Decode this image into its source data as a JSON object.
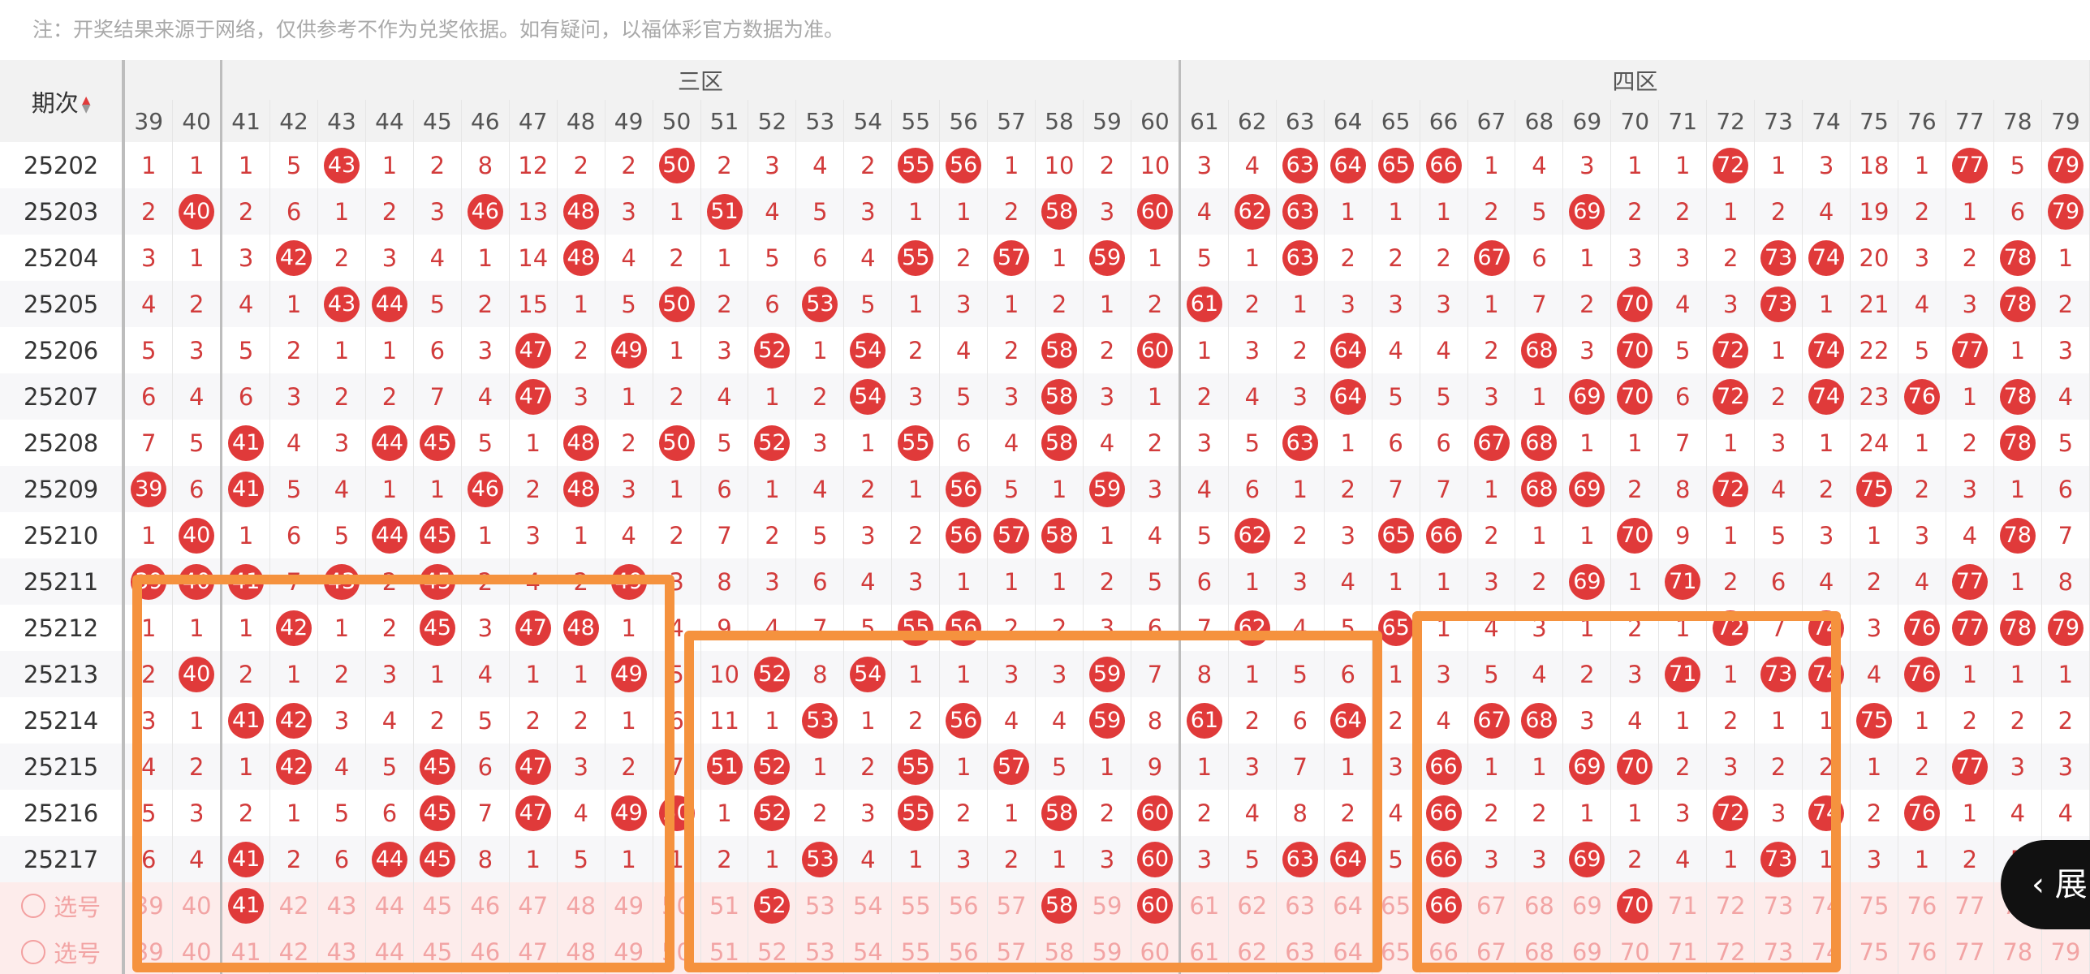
{
  "note": "注：开奖结果来源于网络，仅供参考不作为兑奖依据。如有疑问，以福体彩官方数据为准。",
  "header": {
    "period_label": "期次",
    "zones": [
      {
        "label": "",
        "start": 39,
        "end": 40
      },
      {
        "label": "三区",
        "start": 41,
        "end": 60
      },
      {
        "label": "四区",
        "start": 61,
        "end": 79
      }
    ]
  },
  "numbers": [
    39,
    40,
    41,
    42,
    43,
    44,
    45,
    46,
    47,
    48,
    49,
    50,
    51,
    52,
    53,
    54,
    55,
    56,
    57,
    58,
    59,
    60,
    61,
    62,
    63,
    64,
    65,
    66,
    67,
    68,
    69,
    70,
    71,
    72,
    73,
    74,
    75,
    76,
    77,
    78,
    79
  ],
  "rows": [
    {
      "period": "25202",
      "cells": [
        "1",
        "1",
        "1",
        "5",
        "43",
        "1",
        "2",
        "8",
        "12",
        "2",
        "2",
        "50",
        "2",
        "3",
        "4",
        "2",
        "55",
        "56",
        "1",
        "10",
        "2",
        "10",
        "3",
        "4",
        "63",
        "64",
        "65",
        "66",
        "1",
        "4",
        "3",
        "1",
        "1",
        "72",
        "1",
        "3",
        "18",
        "1",
        "77",
        "5",
        "79"
      ]
    },
    {
      "period": "25203",
      "cells": [
        "2",
        "40",
        "2",
        "6",
        "1",
        "2",
        "3",
        "46",
        "13",
        "48",
        "3",
        "1",
        "51",
        "4",
        "5",
        "3",
        "1",
        "1",
        "2",
        "58",
        "3",
        "60",
        "4",
        "62",
        "63",
        "1",
        "1",
        "1",
        "2",
        "5",
        "69",
        "2",
        "2",
        "1",
        "2",
        "4",
        "19",
        "2",
        "1",
        "6",
        "79"
      ]
    },
    {
      "period": "25204",
      "cells": [
        "3",
        "1",
        "3",
        "42",
        "2",
        "3",
        "4",
        "1",
        "14",
        "48",
        "4",
        "2",
        "1",
        "5",
        "6",
        "4",
        "55",
        "2",
        "57",
        "1",
        "59",
        "1",
        "5",
        "1",
        "63",
        "2",
        "2",
        "2",
        "67",
        "6",
        "1",
        "3",
        "3",
        "2",
        "73",
        "74",
        "20",
        "3",
        "2",
        "78",
        "1"
      ]
    },
    {
      "period": "25205",
      "cells": [
        "4",
        "2",
        "4",
        "1",
        "43",
        "44",
        "5",
        "2",
        "15",
        "1",
        "5",
        "50",
        "2",
        "6",
        "53",
        "5",
        "1",
        "3",
        "1",
        "2",
        "1",
        "2",
        "61",
        "2",
        "1",
        "3",
        "3",
        "3",
        "1",
        "7",
        "2",
        "70",
        "4",
        "3",
        "73",
        "1",
        "21",
        "4",
        "3",
        "78",
        "2"
      ]
    },
    {
      "period": "25206",
      "cells": [
        "5",
        "3",
        "5",
        "2",
        "1",
        "1",
        "6",
        "3",
        "47",
        "2",
        "49",
        "1",
        "3",
        "52",
        "1",
        "54",
        "2",
        "4",
        "2",
        "58",
        "2",
        "60",
        "1",
        "3",
        "2",
        "64",
        "4",
        "4",
        "2",
        "68",
        "3",
        "70",
        "5",
        "72",
        "1",
        "74",
        "22",
        "5",
        "77",
        "1",
        "3"
      ]
    },
    {
      "period": "25207",
      "cells": [
        "6",
        "4",
        "6",
        "3",
        "2",
        "2",
        "7",
        "4",
        "47",
        "3",
        "1",
        "2",
        "4",
        "1",
        "2",
        "54",
        "3",
        "5",
        "3",
        "58",
        "3",
        "1",
        "2",
        "4",
        "3",
        "64",
        "5",
        "5",
        "3",
        "1",
        "69",
        "70",
        "6",
        "72",
        "2",
        "74",
        "23",
        "76",
        "1",
        "78",
        "4"
      ]
    },
    {
      "period": "25208",
      "cells": [
        "7",
        "5",
        "41",
        "4",
        "3",
        "44",
        "45",
        "5",
        "1",
        "48",
        "2",
        "50",
        "5",
        "52",
        "3",
        "1",
        "55",
        "6",
        "4",
        "58",
        "4",
        "2",
        "3",
        "5",
        "63",
        "1",
        "6",
        "6",
        "67",
        "68",
        "1",
        "1",
        "7",
        "1",
        "3",
        "1",
        "24",
        "1",
        "2",
        "78",
        "5"
      ]
    },
    {
      "period": "25209",
      "cells": [
        "39",
        "6",
        "41",
        "5",
        "4",
        "1",
        "1",
        "46",
        "2",
        "48",
        "3",
        "1",
        "6",
        "1",
        "4",
        "2",
        "1",
        "56",
        "5",
        "1",
        "59",
        "3",
        "4",
        "6",
        "1",
        "2",
        "7",
        "7",
        "1",
        "68",
        "69",
        "2",
        "8",
        "72",
        "4",
        "2",
        "75",
        "2",
        "3",
        "1",
        "6"
      ]
    },
    {
      "period": "25210",
      "cells": [
        "1",
        "40",
        "1",
        "6",
        "5",
        "44",
        "45",
        "1",
        "3",
        "1",
        "4",
        "2",
        "7",
        "2",
        "5",
        "3",
        "2",
        "56",
        "57",
        "58",
        "1",
        "4",
        "5",
        "62",
        "2",
        "3",
        "65",
        "66",
        "2",
        "1",
        "1",
        "70",
        "9",
        "1",
        "5",
        "3",
        "1",
        "3",
        "4",
        "78",
        "7"
      ]
    },
    {
      "period": "25211",
      "cells": [
        "39",
        "40",
        "41",
        "7",
        "43",
        "2",
        "45",
        "2",
        "4",
        "2",
        "49",
        "3",
        "8",
        "3",
        "6",
        "4",
        "3",
        "1",
        "1",
        "1",
        "2",
        "5",
        "6",
        "1",
        "3",
        "4",
        "1",
        "1",
        "3",
        "2",
        "69",
        "1",
        "71",
        "2",
        "6",
        "4",
        "2",
        "4",
        "77",
        "1",
        "8"
      ]
    },
    {
      "period": "25212",
      "cells": [
        "1",
        "1",
        "1",
        "42",
        "1",
        "2",
        "45",
        "3",
        "47",
        "48",
        "1",
        "4",
        "9",
        "4",
        "7",
        "5",
        "55",
        "56",
        "2",
        "2",
        "3",
        "6",
        "7",
        "62",
        "4",
        "5",
        "65",
        "1",
        "4",
        "3",
        "1",
        "2",
        "1",
        "72",
        "7",
        "74",
        "3",
        "76",
        "77",
        "78",
        "79"
      ]
    },
    {
      "period": "25213",
      "cells": [
        "2",
        "40",
        "2",
        "1",
        "2",
        "3",
        "1",
        "4",
        "1",
        "1",
        "49",
        "5",
        "10",
        "52",
        "8",
        "54",
        "1",
        "1",
        "3",
        "3",
        "59",
        "7",
        "8",
        "1",
        "5",
        "6",
        "1",
        "3",
        "5",
        "4",
        "2",
        "3",
        "71",
        "1",
        "73",
        "74",
        "4",
        "76",
        "1",
        "1",
        "1"
      ]
    },
    {
      "period": "25214",
      "cells": [
        "3",
        "1",
        "41",
        "42",
        "3",
        "4",
        "2",
        "5",
        "2",
        "2",
        "1",
        "6",
        "11",
        "1",
        "53",
        "1",
        "2",
        "56",
        "4",
        "4",
        "59",
        "8",
        "61",
        "2",
        "6",
        "64",
        "2",
        "4",
        "67",
        "68",
        "3",
        "4",
        "1",
        "2",
        "1",
        "1",
        "75",
        "1",
        "2",
        "2",
        "2"
      ]
    },
    {
      "period": "25215",
      "cells": [
        "4",
        "2",
        "1",
        "42",
        "4",
        "5",
        "45",
        "6",
        "47",
        "3",
        "2",
        "7",
        "51",
        "52",
        "1",
        "2",
        "55",
        "1",
        "57",
        "5",
        "1",
        "9",
        "1",
        "3",
        "7",
        "1",
        "3",
        "66",
        "1",
        "1",
        "69",
        "70",
        "2",
        "3",
        "2",
        "2",
        "1",
        "2",
        "77",
        "3",
        "3"
      ]
    },
    {
      "period": "25216",
      "cells": [
        "5",
        "3",
        "2",
        "1",
        "5",
        "6",
        "45",
        "7",
        "47",
        "4",
        "49",
        "50",
        "1",
        "52",
        "2",
        "3",
        "55",
        "2",
        "1",
        "58",
        "2",
        "60",
        "2",
        "4",
        "8",
        "2",
        "4",
        "66",
        "2",
        "2",
        "1",
        "1",
        "3",
        "72",
        "3",
        "74",
        "2",
        "76",
        "1",
        "4",
        "4"
      ]
    },
    {
      "period": "25217",
      "cells": [
        "6",
        "4",
        "41",
        "2",
        "6",
        "44",
        "45",
        "8",
        "1",
        "5",
        "1",
        "1",
        "2",
        "1",
        "53",
        "4",
        "1",
        "3",
        "2",
        "1",
        "3",
        "60",
        "3",
        "5",
        "63",
        "64",
        "5",
        "66",
        "3",
        "3",
        "69",
        "2",
        "4",
        "1",
        "73",
        "1",
        "3",
        "1",
        "2",
        "5",
        "5"
      ]
    }
  ],
  "pick_label": "选号",
  "pick_row_1_selected": [
    41,
    52,
    58,
    60,
    66,
    70
  ],
  "pick_row_2_selected": [],
  "expand_label": "展",
  "colors": {
    "red_ball": "#e03a3a",
    "dark_ball": "#9c2424",
    "highlight": "#f5923e",
    "text_red": "#d23b3b"
  }
}
